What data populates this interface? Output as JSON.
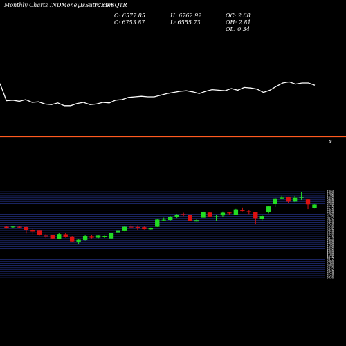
{
  "header": {
    "site": "Monthly Charts INDMoneyIsSutra.com",
    "symbol": "ICES SQTR",
    "open": "O: 6577.85",
    "close": "C: 6753.87",
    "high": "H: 6762.92",
    "low": "L: 6555.73",
    "oc": "OC: 2.68",
    "oh": "OH: 2.81",
    "ol": "OL: 0.34"
  },
  "marker_label": "9",
  "colors": {
    "background": "#000000",
    "up": "#22dd22",
    "down": "#dd1111",
    "line": "#ffffff",
    "separator": "#ff5a1f",
    "grid": "#2a3a9a"
  },
  "chart_data": [
    {
      "type": "line",
      "x": [
        1,
        2,
        3,
        4,
        5,
        6,
        7,
        8,
        9,
        10,
        11,
        12,
        13,
        14,
        15,
        16,
        17,
        18,
        19,
        20,
        21,
        22,
        23,
        24,
        25,
        26,
        27,
        28,
        29,
        30,
        31,
        32,
        33,
        34,
        35,
        36,
        37,
        38,
        39,
        40,
        41,
        42,
        43,
        44,
        45,
        46,
        47,
        48,
        49,
        50
      ],
      "values": [
        74,
        43,
        44,
        42,
        45,
        40,
        41,
        37,
        36,
        39,
        34,
        34,
        38,
        40,
        36,
        37,
        40,
        39,
        44,
        45,
        49,
        50,
        51,
        50,
        50,
        53,
        56,
        58,
        60,
        61,
        59,
        56,
        60,
        63,
        62,
        61,
        65,
        62,
        67,
        66,
        64,
        58,
        62,
        69,
        75,
        77,
        73,
        75,
        75,
        71
      ]
    },
    {
      "type": "candlestick",
      "values_shown": [
        "7404",
        "7300",
        "7196",
        "7092",
        "6988",
        "6884",
        "6780",
        "6676",
        "6572",
        "6468",
        "6364",
        "6260",
        "6156",
        "6052",
        "5948",
        "5844",
        "5740",
        "5636",
        "5532",
        "5428",
        "5324",
        "5220",
        "5116",
        "5012",
        "4908",
        "4804",
        "4700",
        "4596",
        "4492",
        "4388",
        "4284",
        "4180",
        "4076",
        "3972",
        "3868",
        "3764",
        "3660",
        "3556",
        "3452",
        "3348",
        "3244",
        "3140",
        "3036"
      ],
      "candles": [
        {
          "o": 5620,
          "h": 5660,
          "l": 5520,
          "c": 5540
        },
        {
          "o": 5600,
          "h": 5640,
          "l": 5560,
          "c": 5630
        },
        {
          "o": 5620,
          "h": 5650,
          "l": 5560,
          "c": 5580
        },
        {
          "o": 5610,
          "h": 5620,
          "l": 5280,
          "c": 5460
        },
        {
          "o": 5440,
          "h": 5520,
          "l": 5240,
          "c": 5380
        },
        {
          "o": 5420,
          "h": 5440,
          "l": 5160,
          "c": 5190
        },
        {
          "o": 5170,
          "h": 5260,
          "l": 5040,
          "c": 5160
        },
        {
          "o": 5190,
          "h": 5210,
          "l": 4980,
          "c": 5020
        },
        {
          "o": 5000,
          "h": 5290,
          "l": 4970,
          "c": 5250
        },
        {
          "o": 5240,
          "h": 5300,
          "l": 5060,
          "c": 5100
        },
        {
          "o": 5120,
          "h": 5150,
          "l": 4840,
          "c": 4880
        },
        {
          "o": 4870,
          "h": 4970,
          "l": 4760,
          "c": 4950
        },
        {
          "o": 4940,
          "h": 5200,
          "l": 4920,
          "c": 5150
        },
        {
          "o": 5140,
          "h": 5190,
          "l": 5020,
          "c": 5060
        },
        {
          "o": 5060,
          "h": 5180,
          "l": 5030,
          "c": 5170
        },
        {
          "o": 5100,
          "h": 5160,
          "l": 5060,
          "c": 5150
        },
        {
          "o": 5020,
          "h": 5310,
          "l": 5010,
          "c": 5300
        },
        {
          "o": 5340,
          "h": 5420,
          "l": 5320,
          "c": 5410
        },
        {
          "o": 5400,
          "h": 5640,
          "l": 5390,
          "c": 5620
        },
        {
          "o": 5620,
          "h": 5760,
          "l": 5600,
          "c": 5610
        },
        {
          "o": 5610,
          "h": 5690,
          "l": 5470,
          "c": 5590
        },
        {
          "o": 5600,
          "h": 5630,
          "l": 5480,
          "c": 5500
        },
        {
          "o": 5490,
          "h": 5580,
          "l": 5480,
          "c": 5570
        },
        {
          "o": 5620,
          "h": 6030,
          "l": 5610,
          "c": 5980
        },
        {
          "o": 5960,
          "h": 6080,
          "l": 5890,
          "c": 5970
        },
        {
          "o": 5960,
          "h": 6160,
          "l": 5930,
          "c": 6120
        },
        {
          "o": 6120,
          "h": 6270,
          "l": 6060,
          "c": 6240
        },
        {
          "o": 6260,
          "h": 6330,
          "l": 6160,
          "c": 6250
        },
        {
          "o": 6240,
          "h": 6260,
          "l": 5880,
          "c": 5900
        },
        {
          "o": 5880,
          "h": 5990,
          "l": 5870,
          "c": 5950
        },
        {
          "o": 6080,
          "h": 6420,
          "l": 6060,
          "c": 6370
        },
        {
          "o": 6340,
          "h": 6370,
          "l": 6100,
          "c": 6140
        },
        {
          "o": 6150,
          "h": 6220,
          "l": 5920,
          "c": 6150
        },
        {
          "o": 6200,
          "h": 6390,
          "l": 6100,
          "c": 6330
        },
        {
          "o": 6340,
          "h": 6350,
          "l": 6230,
          "c": 6300
        },
        {
          "o": 6240,
          "h": 6530,
          "l": 6220,
          "c": 6500
        },
        {
          "o": 6450,
          "h": 6600,
          "l": 6400,
          "c": 6420
        },
        {
          "o": 6400,
          "h": 6450,
          "l": 6260,
          "c": 6370
        },
        {
          "o": 6350,
          "h": 6360,
          "l": 5740,
          "c": 6050
        },
        {
          "o": 6000,
          "h": 6230,
          "l": 5930,
          "c": 6170
        },
        {
          "o": 6350,
          "h": 6700,
          "l": 6300,
          "c": 6660
        },
        {
          "o": 6770,
          "h": 7100,
          "l": 6630,
          "c": 7060
        },
        {
          "o": 7060,
          "h": 7210,
          "l": 7050,
          "c": 7110
        },
        {
          "o": 7150,
          "h": 7160,
          "l": 6820,
          "c": 6900
        },
        {
          "o": 6900,
          "h": 7200,
          "l": 6870,
          "c": 7100
        },
        {
          "o": 7100,
          "h": 7370,
          "l": 6980,
          "c": 7140
        },
        {
          "o": 7010,
          "h": 7020,
          "l": 6520,
          "c": 6760
        },
        {
          "o": 6578,
          "h": 6763,
          "l": 6556,
          "c": 6754
        }
      ]
    }
  ]
}
